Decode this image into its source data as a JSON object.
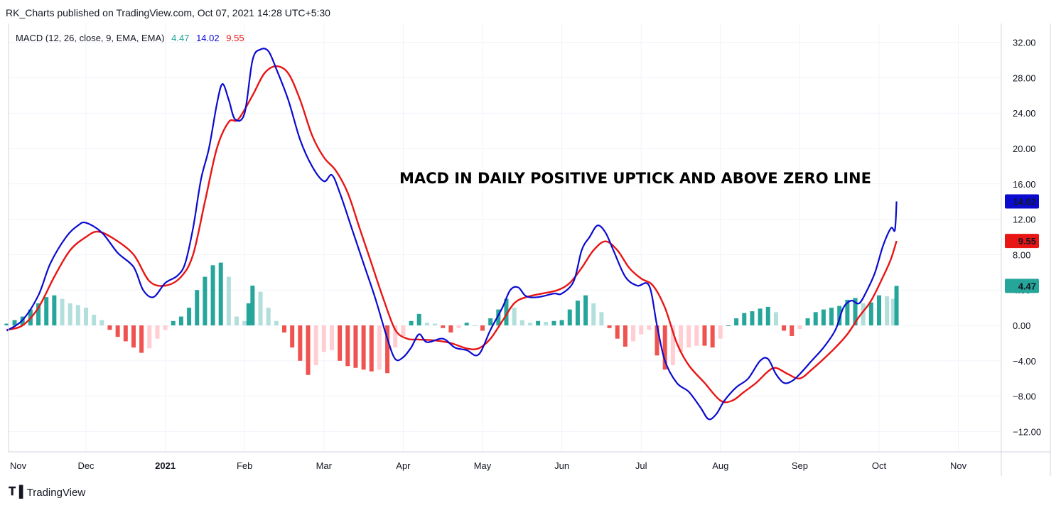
{
  "header": {
    "published": "RK_Charts published on TradingView.com, Oct 07, 2021 14:28 UTC+5:30"
  },
  "legend": {
    "indicator": "MACD (12, 26, close, 9, EMA, EMA)",
    "histogram_value": "4.47",
    "macd_value": "14.02",
    "signal_value": "9.55"
  },
  "annotation": "MACD IN DAILY POSITIVE UPTICK AND ABOVE ZERO LINE",
  "footer": {
    "brand": "TradingView"
  },
  "colors": {
    "macd": "#0b0bd0",
    "signal": "#e81515",
    "hist_pos_strong": "#26a69a",
    "hist_pos_weak": "#b2dfdb",
    "hist_neg_strong": "#ef5350",
    "hist_neg_weak": "#ffcdd2",
    "grid": "#f0f3fa"
  },
  "chart_data": {
    "type": "line",
    "ylim": [
      -14,
      34
    ],
    "y_ticks": [
      32,
      28,
      24,
      20,
      16,
      12,
      8,
      4,
      0,
      -4,
      -8,
      -12
    ],
    "x_ticks": [
      {
        "label": "Nov",
        "t": -1.3
      },
      {
        "label": "Dec",
        "t": 0.0
      },
      {
        "label": "2021",
        "t": 1.0
      },
      {
        "label": "Feb",
        "t": 2.0
      },
      {
        "label": "Mar",
        "t": 3.0
      },
      {
        "label": "Apr",
        "t": 4.0
      },
      {
        "label": "May",
        "t": 5.0
      },
      {
        "label": "Jun",
        "t": 6.0
      },
      {
        "label": "Jul",
        "t": 7.0
      },
      {
        "label": "Aug",
        "t": 8.0
      },
      {
        "label": "Sep",
        "t": 9.0
      },
      {
        "label": "Oct",
        "t": 10.0
      },
      {
        "label": "Nov",
        "t": 11.0
      }
    ],
    "x_range_months": [
      -1.0,
      10.8
    ],
    "last_values": {
      "histogram": 4.47,
      "macd": 14.02,
      "signal": 9.55
    },
    "series": [
      {
        "name": "MACD",
        "points": [
          [
            -1.0,
            -0.6
          ],
          [
            -0.8,
            0.6
          ],
          [
            -0.6,
            3.4
          ],
          [
            -0.45,
            7.0
          ],
          [
            -0.25,
            10.0
          ],
          [
            -0.1,
            11.3
          ],
          [
            0.0,
            11.6
          ],
          [
            0.2,
            10.5
          ],
          [
            0.4,
            8.2
          ],
          [
            0.6,
            6.6
          ],
          [
            0.72,
            4.0
          ],
          [
            0.85,
            3.2
          ],
          [
            1.0,
            4.8
          ],
          [
            1.15,
            5.6
          ],
          [
            1.25,
            7.0
          ],
          [
            1.35,
            11.0
          ],
          [
            1.45,
            16.5
          ],
          [
            1.55,
            20.0
          ],
          [
            1.65,
            25.0
          ],
          [
            1.72,
            27.3
          ],
          [
            1.8,
            25.5
          ],
          [
            1.88,
            23.3
          ],
          [
            2.0,
            24.0
          ],
          [
            2.1,
            30.0
          ],
          [
            2.2,
            31.2
          ],
          [
            2.3,
            31.0
          ],
          [
            2.4,
            29.0
          ],
          [
            2.55,
            25.5
          ],
          [
            2.7,
            21.0
          ],
          [
            2.85,
            18.0
          ],
          [
            3.0,
            16.3
          ],
          [
            3.1,
            17.0
          ],
          [
            3.2,
            15.0
          ],
          [
            3.35,
            11.0
          ],
          [
            3.5,
            7.0
          ],
          [
            3.65,
            3.0
          ],
          [
            3.8,
            -1.5
          ],
          [
            3.9,
            -3.8
          ],
          [
            4.0,
            -3.6
          ],
          [
            4.1,
            -2.5
          ],
          [
            4.2,
            -1.0
          ],
          [
            4.3,
            -1.9
          ],
          [
            4.5,
            -1.5
          ],
          [
            4.65,
            -2.5
          ],
          [
            4.8,
            -2.8
          ],
          [
            4.95,
            -3.3
          ],
          [
            5.1,
            -0.5
          ],
          [
            5.25,
            2.0
          ],
          [
            5.35,
            4.0
          ],
          [
            5.45,
            4.3
          ],
          [
            5.55,
            3.3
          ],
          [
            5.7,
            3.2
          ],
          [
            5.9,
            3.6
          ],
          [
            6.0,
            3.6
          ],
          [
            6.15,
            5.0
          ],
          [
            6.25,
            8.5
          ],
          [
            6.35,
            10.0
          ],
          [
            6.45,
            11.3
          ],
          [
            6.55,
            10.5
          ],
          [
            6.65,
            8.5
          ],
          [
            6.8,
            5.5
          ],
          [
            6.95,
            4.5
          ],
          [
            7.1,
            4.5
          ],
          [
            7.2,
            0.0
          ],
          [
            7.3,
            -4.0
          ],
          [
            7.45,
            -6.5
          ],
          [
            7.6,
            -7.5
          ],
          [
            7.75,
            -9.3
          ],
          [
            7.85,
            -10.6
          ],
          [
            7.95,
            -10.0
          ],
          [
            8.05,
            -8.5
          ],
          [
            8.2,
            -7.0
          ],
          [
            8.35,
            -6.0
          ],
          [
            8.5,
            -4.0
          ],
          [
            8.6,
            -3.8
          ],
          [
            8.7,
            -5.5
          ],
          [
            8.8,
            -6.5
          ],
          [
            8.9,
            -6.3
          ],
          [
            9.0,
            -5.5
          ],
          [
            9.15,
            -4.0
          ],
          [
            9.3,
            -2.5
          ],
          [
            9.45,
            -0.5
          ],
          [
            9.55,
            2.0
          ],
          [
            9.65,
            2.8
          ],
          [
            9.75,
            2.5
          ],
          [
            9.85,
            4.0
          ],
          [
            9.95,
            6.0
          ],
          [
            10.05,
            9.0
          ],
          [
            10.15,
            11.0
          ],
          [
            10.2,
            10.8
          ],
          [
            10.22,
            14.02
          ]
        ]
      },
      {
        "name": "Signal",
        "points": [
          [
            -1.0,
            -0.5
          ],
          [
            -0.8,
            0.0
          ],
          [
            -0.6,
            2.0
          ],
          [
            -0.4,
            5.5
          ],
          [
            -0.2,
            8.5
          ],
          [
            0.0,
            10.0
          ],
          [
            0.15,
            10.6
          ],
          [
            0.35,
            9.8
          ],
          [
            0.6,
            8.0
          ],
          [
            0.8,
            5.0
          ],
          [
            1.0,
            4.5
          ],
          [
            1.2,
            5.5
          ],
          [
            1.35,
            8.0
          ],
          [
            1.5,
            14.0
          ],
          [
            1.65,
            20.0
          ],
          [
            1.8,
            23.0
          ],
          [
            1.92,
            23.3
          ],
          [
            2.1,
            26.0
          ],
          [
            2.25,
            28.5
          ],
          [
            2.4,
            29.3
          ],
          [
            2.55,
            28.5
          ],
          [
            2.7,
            25.5
          ],
          [
            2.85,
            21.5
          ],
          [
            3.0,
            19.0
          ],
          [
            3.15,
            17.5
          ],
          [
            3.3,
            15.0
          ],
          [
            3.45,
            11.0
          ],
          [
            3.6,
            7.0
          ],
          [
            3.75,
            3.0
          ],
          [
            3.9,
            -0.5
          ],
          [
            4.05,
            -1.5
          ],
          [
            4.2,
            -1.6
          ],
          [
            4.4,
            -1.7
          ],
          [
            4.6,
            -2.0
          ],
          [
            4.8,
            -2.6
          ],
          [
            4.95,
            -2.6
          ],
          [
            5.1,
            -1.5
          ],
          [
            5.25,
            0.5
          ],
          [
            5.4,
            2.5
          ],
          [
            5.55,
            3.2
          ],
          [
            5.75,
            3.6
          ],
          [
            5.95,
            4.0
          ],
          [
            6.1,
            4.8
          ],
          [
            6.25,
            6.5
          ],
          [
            6.4,
            8.5
          ],
          [
            6.55,
            9.5
          ],
          [
            6.7,
            8.5
          ],
          [
            6.85,
            6.5
          ],
          [
            7.0,
            5.3
          ],
          [
            7.15,
            4.5
          ],
          [
            7.3,
            2.0
          ],
          [
            7.45,
            -2.0
          ],
          [
            7.6,
            -4.5
          ],
          [
            7.8,
            -6.5
          ],
          [
            8.0,
            -8.5
          ],
          [
            8.15,
            -8.5
          ],
          [
            8.3,
            -7.5
          ],
          [
            8.45,
            -6.5
          ],
          [
            8.6,
            -5.2
          ],
          [
            8.7,
            -4.8
          ],
          [
            8.85,
            -5.5
          ],
          [
            9.0,
            -6.0
          ],
          [
            9.15,
            -5.0
          ],
          [
            9.3,
            -3.8
          ],
          [
            9.45,
            -2.5
          ],
          [
            9.6,
            -1.0
          ],
          [
            9.75,
            1.0
          ],
          [
            9.9,
            2.8
          ],
          [
            10.05,
            5.5
          ],
          [
            10.15,
            7.5
          ],
          [
            10.22,
            9.55
          ]
        ]
      },
      {
        "name": "Histogram",
        "points": [
          [
            -1.0,
            0.2
          ],
          [
            -0.9,
            0.6
          ],
          [
            -0.8,
            1.0
          ],
          [
            -0.7,
            1.8
          ],
          [
            -0.6,
            2.5
          ],
          [
            -0.5,
            3.2
          ],
          [
            -0.4,
            3.4
          ],
          [
            -0.3,
            3.0
          ],
          [
            -0.2,
            2.5
          ],
          [
            -0.1,
            2.3
          ],
          [
            0.0,
            2.0
          ],
          [
            0.1,
            1.2
          ],
          [
            0.2,
            0.6
          ],
          [
            0.3,
            -0.5
          ],
          [
            0.4,
            -1.3
          ],
          [
            0.5,
            -1.8
          ],
          [
            0.6,
            -2.5
          ],
          [
            0.7,
            -3.1
          ],
          [
            0.8,
            -2.6
          ],
          [
            0.9,
            -1.5
          ],
          [
            1.0,
            -0.5
          ],
          [
            1.1,
            0.5
          ],
          [
            1.2,
            1.0
          ],
          [
            1.3,
            2.0
          ],
          [
            1.4,
            4.0
          ],
          [
            1.5,
            5.5
          ],
          [
            1.6,
            6.8
          ],
          [
            1.7,
            7.1
          ],
          [
            1.8,
            5.5
          ],
          [
            1.9,
            1.0
          ],
          [
            2.0,
            0.5
          ],
          [
            2.05,
            2.5
          ],
          [
            2.1,
            4.5
          ],
          [
            2.2,
            3.8
          ],
          [
            2.3,
            2.0
          ],
          [
            2.4,
            0.5
          ],
          [
            2.5,
            -0.8
          ],
          [
            2.6,
            -2.5
          ],
          [
            2.7,
            -4.0
          ],
          [
            2.8,
            -5.6
          ],
          [
            2.9,
            -4.5
          ],
          [
            3.0,
            -3.0
          ],
          [
            3.1,
            -2.8
          ],
          [
            3.2,
            -4.0
          ],
          [
            3.3,
            -4.6
          ],
          [
            3.4,
            -4.8
          ],
          [
            3.5,
            -5.0
          ],
          [
            3.6,
            -5.2
          ],
          [
            3.7,
            -5.0
          ],
          [
            3.8,
            -5.4
          ],
          [
            3.9,
            -2.5
          ],
          [
            4.0,
            -1.2
          ],
          [
            4.1,
            0.5
          ],
          [
            4.2,
            1.3
          ],
          [
            4.3,
            0.3
          ],
          [
            4.4,
            0.2
          ],
          [
            4.5,
            -0.3
          ],
          [
            4.6,
            -0.8
          ],
          [
            4.7,
            -0.3
          ],
          [
            4.8,
            0.3
          ],
          [
            4.9,
            0.0
          ],
          [
            5.0,
            -0.6
          ],
          [
            5.1,
            0.8
          ],
          [
            5.2,
            1.8
          ],
          [
            5.3,
            3.0
          ],
          [
            5.4,
            2.0
          ],
          [
            5.5,
            0.6
          ],
          [
            5.6,
            0.3
          ],
          [
            5.7,
            0.5
          ],
          [
            5.8,
            0.4
          ],
          [
            5.9,
            0.5
          ],
          [
            6.0,
            0.6
          ],
          [
            6.1,
            1.8
          ],
          [
            6.2,
            2.8
          ],
          [
            6.3,
            3.4
          ],
          [
            6.4,
            2.5
          ],
          [
            6.5,
            1.5
          ],
          [
            6.6,
            -0.3
          ],
          [
            6.7,
            -1.5
          ],
          [
            6.8,
            -2.4
          ],
          [
            6.9,
            -1.8
          ],
          [
            7.0,
            -1.0
          ],
          [
            7.1,
            -0.5
          ],
          [
            7.2,
            -3.4
          ],
          [
            7.3,
            -5.0
          ],
          [
            7.4,
            -4.5
          ],
          [
            7.5,
            -3.0
          ],
          [
            7.6,
            -2.5
          ],
          [
            7.7,
            -2.3
          ],
          [
            7.8,
            -2.3
          ],
          [
            7.9,
            -2.5
          ],
          [
            8.0,
            -1.5
          ],
          [
            8.1,
            0.0
          ],
          [
            8.2,
            0.8
          ],
          [
            8.3,
            1.4
          ],
          [
            8.4,
            1.6
          ],
          [
            8.5,
            1.9
          ],
          [
            8.6,
            2.1
          ],
          [
            8.7,
            1.5
          ],
          [
            8.8,
            -0.6
          ],
          [
            8.9,
            -1.2
          ],
          [
            9.0,
            -0.4
          ],
          [
            9.1,
            0.8
          ],
          [
            9.2,
            1.5
          ],
          [
            9.3,
            1.8
          ],
          [
            9.4,
            2.0
          ],
          [
            9.5,
            2.2
          ],
          [
            9.6,
            2.9
          ],
          [
            9.7,
            3.1
          ],
          [
            9.8,
            2.5
          ],
          [
            9.9,
            2.6
          ],
          [
            10.0,
            3.4
          ],
          [
            10.1,
            3.3
          ],
          [
            10.18,
            3.0
          ],
          [
            10.22,
            4.47
          ]
        ]
      }
    ]
  }
}
